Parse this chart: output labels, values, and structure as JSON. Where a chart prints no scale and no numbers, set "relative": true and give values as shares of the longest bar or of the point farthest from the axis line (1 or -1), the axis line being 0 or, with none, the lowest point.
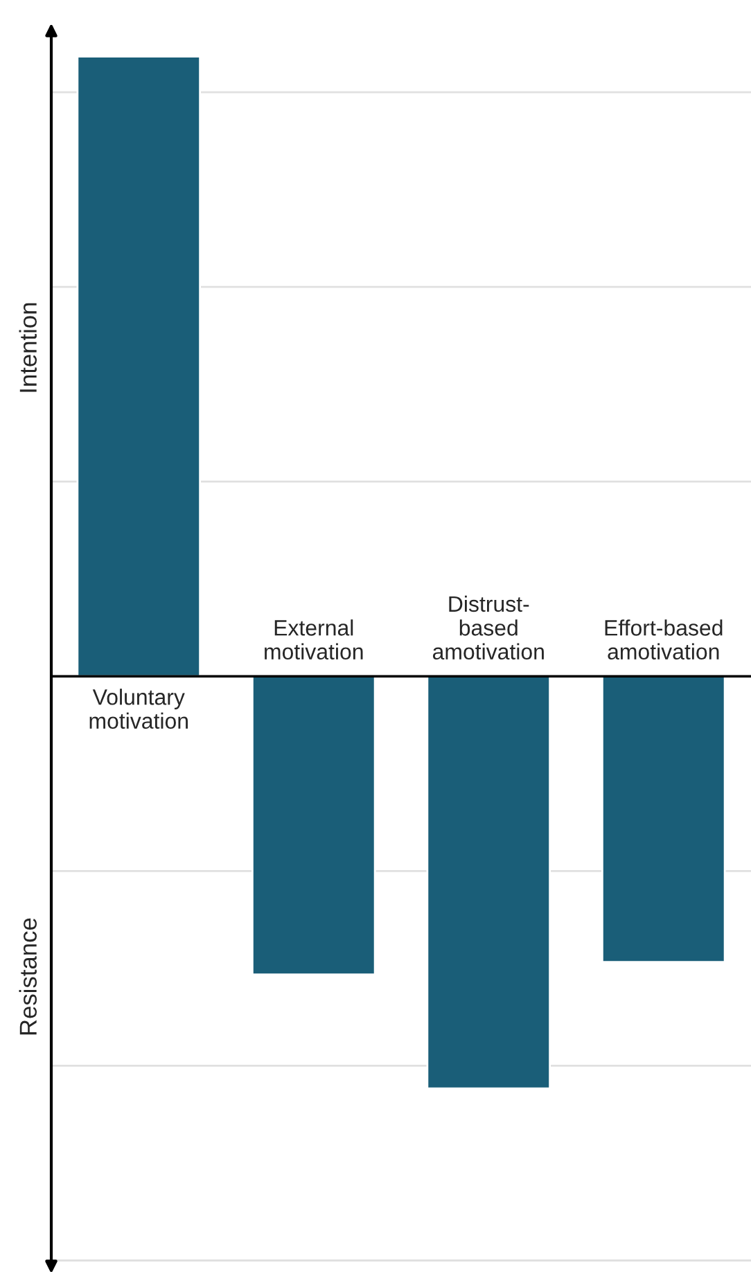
{
  "chart_data": {
    "type": "bar",
    "relative": true,
    "categories": [
      "Voluntary\nmotivation",
      "External\nmotivation",
      "Distrust-\nbased\namotivation",
      "Effort-based\namotivation"
    ],
    "values": [
      1,
      -0.481,
      -0.665,
      -0.461
    ],
    "color": "#1a5e78",
    "ylabel": "Intention",
    "annotations": [
      "Resistance"
    ],
    "grid": "y"
  }
}
